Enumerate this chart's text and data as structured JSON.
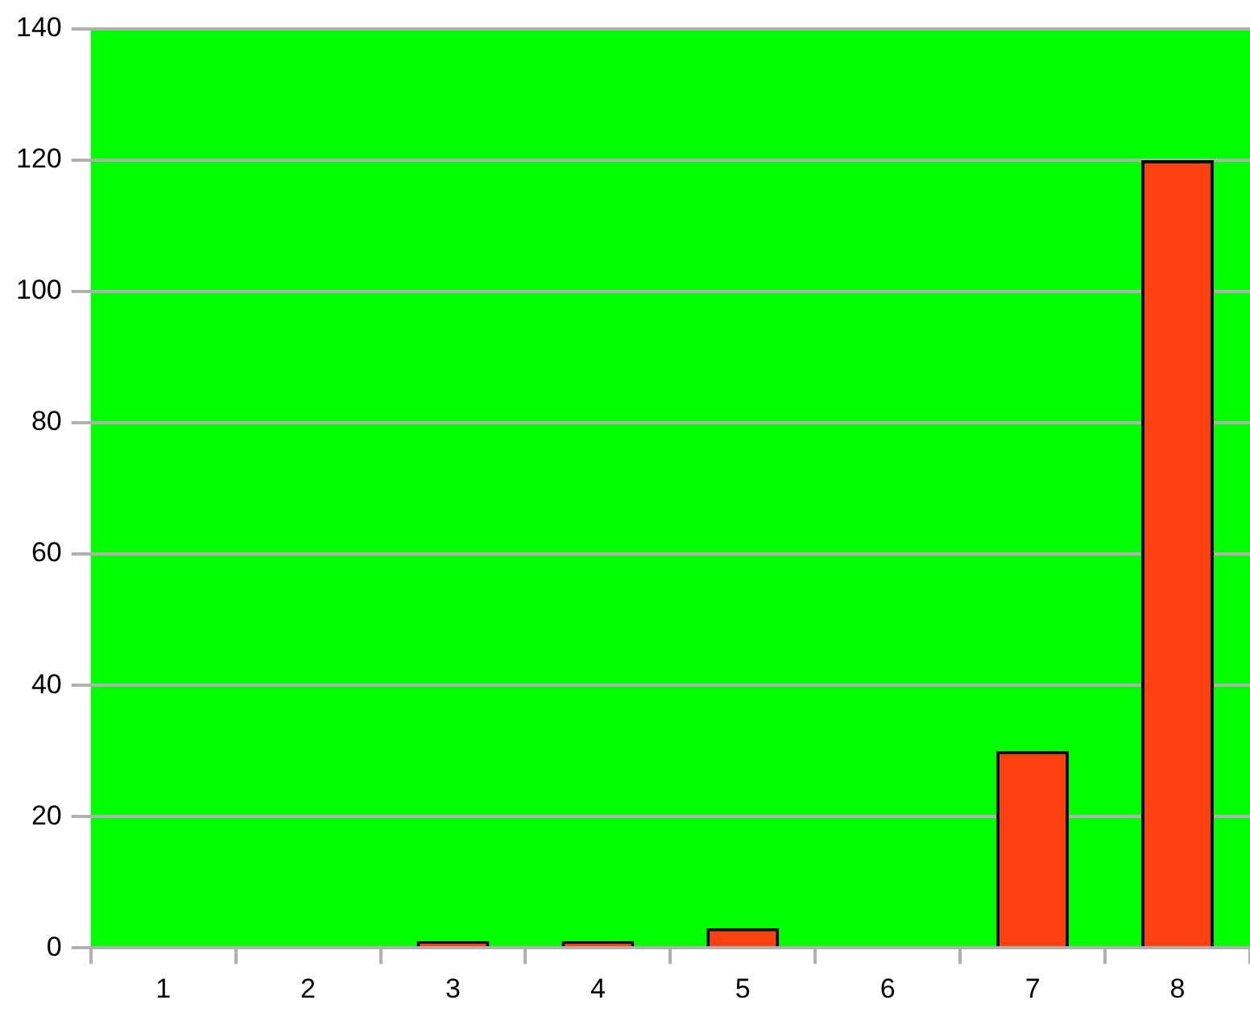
{
  "chart_data": {
    "type": "bar",
    "categories": [
      "1",
      "2",
      "3",
      "4",
      "5",
      "6",
      "7",
      "8"
    ],
    "values": [
      0,
      0,
      1,
      1,
      3,
      0,
      30,
      120
    ],
    "color": "#ff4010",
    "ylim": [
      0,
      140
    ],
    "yticks": [
      0,
      20,
      40,
      60,
      80,
      100,
      120,
      140
    ],
    "grid": "y",
    "legend": false
  }
}
